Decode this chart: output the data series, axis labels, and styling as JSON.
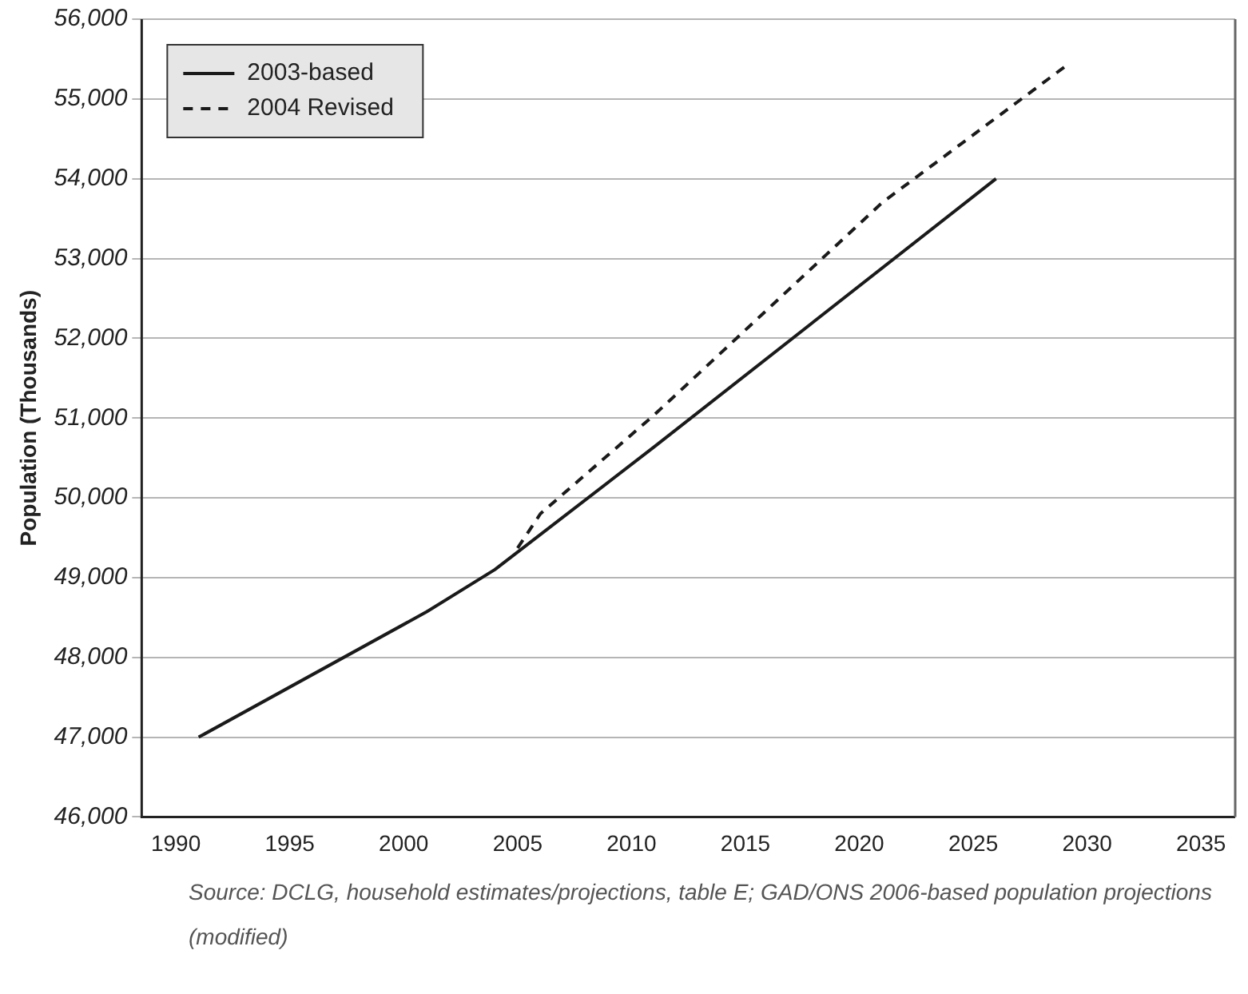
{
  "chart_data": {
    "type": "line",
    "ylabel": "Population (Thousands)",
    "xlim": [
      1988.5,
      2036.5
    ],
    "xticks": [
      1990,
      1995,
      2000,
      2005,
      2010,
      2015,
      2020,
      2025,
      2030,
      2035
    ],
    "ylim": [
      46000,
      56000
    ],
    "yticks": [
      {
        "value": 46000,
        "label": "46,000"
      },
      {
        "value": 47000,
        "label": "47,000"
      },
      {
        "value": 48000,
        "label": "48,000"
      },
      {
        "value": 49000,
        "label": "49,000"
      },
      {
        "value": 50000,
        "label": "50,000"
      },
      {
        "value": 51000,
        "label": "51,000"
      },
      {
        "value": 52000,
        "label": "52,000"
      },
      {
        "value": 53000,
        "label": "53,000"
      },
      {
        "value": 54000,
        "label": "54,000"
      },
      {
        "value": 55000,
        "label": "55,000"
      },
      {
        "value": 56000,
        "label": "56,000"
      }
    ],
    "grid": "y",
    "legend": "top left",
    "marker": "none",
    "series": [
      {
        "name": "2003-based",
        "color": "#1a1a1a",
        "line_style": "solid",
        "x": [
          1991,
          2001,
          2004,
          2011,
          2026
        ],
        "values": [
          47000,
          48570,
          49100,
          50640,
          54000
        ]
      },
      {
        "name": "2004 Revised",
        "color": "#1a1a1a",
        "line_style": "dashed",
        "x": [
          2005,
          2006,
          2011,
          2021,
          2029
        ],
        "values": [
          49370,
          49800,
          51040,
          53700,
          55400
        ]
      }
    ],
    "annotations": [
      "Source: DCLG, household estimates/projections, table E; GAD/ONS 2006-based population projections (modified)"
    ]
  }
}
